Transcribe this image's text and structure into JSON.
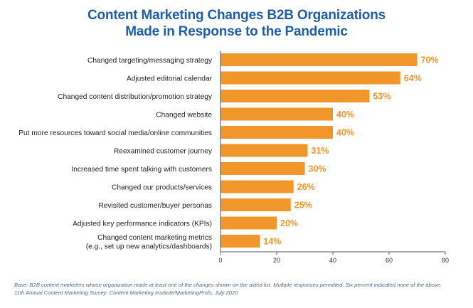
{
  "title_line1": "Content Marketing Changes B2B Organizations",
  "title_line2": "Made in Response to the Pandemic",
  "footnote_base": "Base: B2B content marketers whose organization made at least one of the changes shown on the aided list. Multiple responses permitted. Six percent indicated none of the above.",
  "footnote_source": "11th Annual Content Marketing Survey: Content Marketing Institute/MarketingProfs, July 2020",
  "colors": {
    "bar": "#f0962a",
    "title": "#1f5fa6",
    "label": "#f0962a"
  },
  "chart_data": {
    "type": "bar",
    "orientation": "horizontal",
    "categories": [
      [
        "Changed targeting/messaging strategy"
      ],
      [
        "Adjusted editorial calendar"
      ],
      [
        "Changed content distribution/promotion strategy"
      ],
      [
        "Changed website"
      ],
      [
        "Put more resources toward social media/online communities"
      ],
      [
        "Reexamined customer journey"
      ],
      [
        "Increased time spent talking with customers"
      ],
      [
        "Changed our products/services"
      ],
      [
        "Revisited customer/buyer personas"
      ],
      [
        "Adjusted key performance indicators (KPIs)"
      ],
      [
        "Changed content marketing metrics",
        "(e.g., set up new analytics/dashboards)"
      ]
    ],
    "values": [
      70,
      64,
      53,
      40,
      40,
      31,
      30,
      26,
      25,
      20,
      14
    ],
    "value_labels": [
      "70%",
      "64%",
      "53%",
      "40%",
      "40%",
      "31%",
      "30%",
      "26%",
      "25%",
      "20%",
      "14%"
    ],
    "xlim": [
      0,
      80
    ],
    "xticks": [
      0,
      20,
      40,
      60,
      80
    ],
    "grid": false,
    "legend": "none"
  }
}
